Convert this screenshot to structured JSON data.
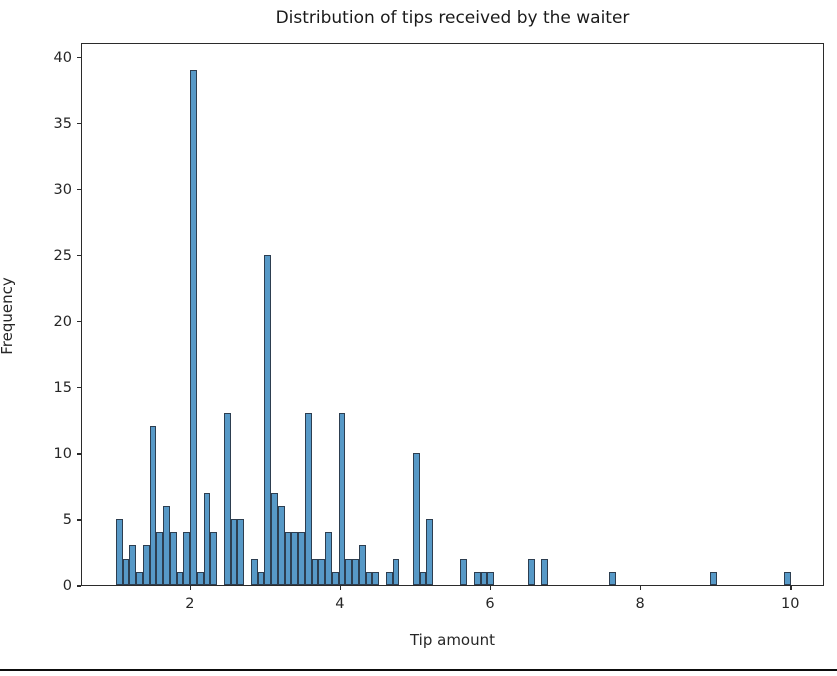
{
  "chart_data": {
    "type": "bar",
    "subtype": "histogram",
    "title": "Distribution of tips received by the waiter",
    "xlabel": "Tip amount",
    "ylabel": "Frequency",
    "bin_start": 1.0,
    "bin_width": 0.09,
    "counts": [
      5,
      2,
      3,
      1,
      3,
      12,
      4,
      6,
      4,
      1,
      4,
      39,
      1,
      7,
      4,
      0,
      13,
      5,
      5,
      0,
      2,
      1,
      25,
      7,
      6,
      4,
      4,
      4,
      13,
      2,
      2,
      4,
      1,
      13,
      2,
      2,
      3,
      1,
      1,
      0,
      1,
      2,
      0,
      0,
      10,
      1,
      5,
      0,
      0,
      0,
      0,
      2,
      0,
      1,
      1,
      1,
      0,
      0,
      0,
      0,
      0,
      2,
      0,
      2,
      0,
      0,
      0,
      0,
      0,
      0,
      0,
      0,
      0,
      1,
      0,
      0,
      0,
      0,
      0,
      0,
      0,
      0,
      0,
      0,
      0,
      0,
      0,
      0,
      1,
      0,
      0,
      0,
      0,
      0,
      0,
      0,
      0,
      0,
      0,
      1
    ],
    "xlim": [
      0.55,
      10.45
    ],
    "ylim": [
      0,
      41.1
    ],
    "xticks": [
      2,
      4,
      6,
      8,
      10
    ],
    "yticks": [
      0,
      5,
      10,
      15,
      20,
      25,
      30,
      35,
      40
    ],
    "grid": false,
    "legend_position": "none",
    "bar_fill_color": "#5799c7",
    "bar_edge_color": "#2d3e50",
    "axis_color": "#2b2b2b",
    "text_color": "#262626"
  },
  "window": {
    "bottom_divider_color": "#0d0d0d"
  }
}
